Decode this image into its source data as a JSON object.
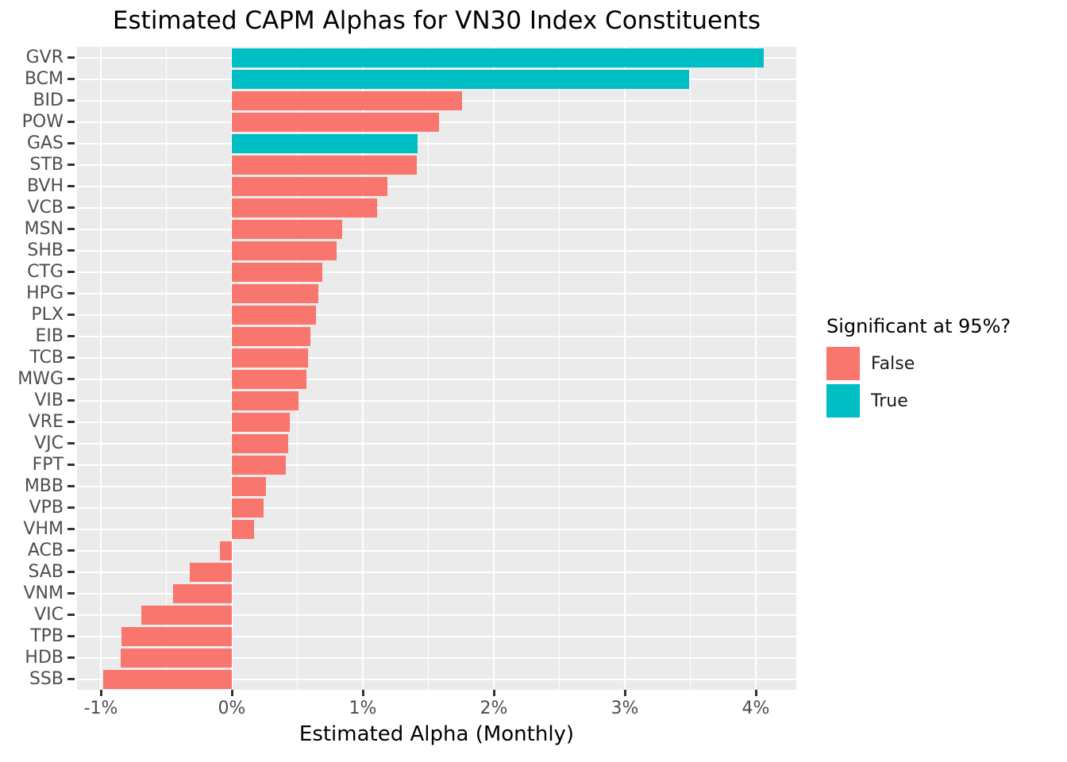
{
  "chart": {
    "title": "Estimated CAPM Alphas for VN30 Index Constituents",
    "xlabel": "Estimated Alpha (Monthly)",
    "legend": {
      "title": "Significant at 95%?",
      "items": [
        {
          "label": "False",
          "key": "false",
          "color": "#F8766D"
        },
        {
          "label": "True",
          "key": "true",
          "color": "#00BFC4"
        }
      ]
    }
  },
  "colors": {
    "significant_false": "#F8766D",
    "significant_true": "#00BFC4",
    "panel_background": "#EBEBEB",
    "gridline": "#FFFFFF",
    "axis_text": "#4D4D4D",
    "tick_mark": "#333333",
    "title_text": "#000000"
  },
  "chart_data": {
    "type": "bar",
    "orientation": "horizontal",
    "title": "Estimated CAPM Alphas for VN30 Index Constituents",
    "xlabel": "Estimated Alpha (Monthly)",
    "ylabel": "",
    "series_key": "Significant at 95%?",
    "legend_position": "right",
    "grid": true,
    "xlim": [
      -1.2,
      4.3
    ],
    "x_ticks": [
      {
        "label": "-1%",
        "value": -1
      },
      {
        "label": "0%",
        "value": 0
      },
      {
        "label": "1%",
        "value": 1
      },
      {
        "label": "2%",
        "value": 2
      },
      {
        "label": "3%",
        "value": 3
      },
      {
        "label": "4%",
        "value": 4
      }
    ],
    "bars": [
      {
        "ticker": "GVR",
        "alpha_pct": 4.06,
        "significant": true
      },
      {
        "ticker": "BCM",
        "alpha_pct": 3.49,
        "significant": true
      },
      {
        "ticker": "BID",
        "alpha_pct": 1.76,
        "significant": false
      },
      {
        "ticker": "POW",
        "alpha_pct": 1.58,
        "significant": false
      },
      {
        "ticker": "GAS",
        "alpha_pct": 1.42,
        "significant": true
      },
      {
        "ticker": "STB",
        "alpha_pct": 1.41,
        "significant": false
      },
      {
        "ticker": "BVH",
        "alpha_pct": 1.19,
        "significant": false
      },
      {
        "ticker": "VCB",
        "alpha_pct": 1.11,
        "significant": false
      },
      {
        "ticker": "MSN",
        "alpha_pct": 0.84,
        "significant": false
      },
      {
        "ticker": "SHB",
        "alpha_pct": 0.8,
        "significant": false
      },
      {
        "ticker": "CTG",
        "alpha_pct": 0.69,
        "significant": false
      },
      {
        "ticker": "HPG",
        "alpha_pct": 0.66,
        "significant": false
      },
      {
        "ticker": "PLX",
        "alpha_pct": 0.64,
        "significant": false
      },
      {
        "ticker": "EIB",
        "alpha_pct": 0.6,
        "significant": false
      },
      {
        "ticker": "TCB",
        "alpha_pct": 0.58,
        "significant": false
      },
      {
        "ticker": "MWG",
        "alpha_pct": 0.57,
        "significant": false
      },
      {
        "ticker": "VIB",
        "alpha_pct": 0.51,
        "significant": false
      },
      {
        "ticker": "VRE",
        "alpha_pct": 0.44,
        "significant": false
      },
      {
        "ticker": "VJC",
        "alpha_pct": 0.43,
        "significant": false
      },
      {
        "ticker": "FPT",
        "alpha_pct": 0.41,
        "significant": false
      },
      {
        "ticker": "MBB",
        "alpha_pct": 0.26,
        "significant": false
      },
      {
        "ticker": "VPB",
        "alpha_pct": 0.24,
        "significant": false
      },
      {
        "ticker": "VHM",
        "alpha_pct": 0.17,
        "significant": false
      },
      {
        "ticker": "ACB",
        "alpha_pct": -0.09,
        "significant": false
      },
      {
        "ticker": "SAB",
        "alpha_pct": -0.32,
        "significant": false
      },
      {
        "ticker": "VNM",
        "alpha_pct": -0.45,
        "significant": false
      },
      {
        "ticker": "VIC",
        "alpha_pct": -0.69,
        "significant": false
      },
      {
        "ticker": "TPB",
        "alpha_pct": -0.84,
        "significant": false
      },
      {
        "ticker": "HDB",
        "alpha_pct": -0.85,
        "significant": false
      },
      {
        "ticker": "SSB",
        "alpha_pct": -0.98,
        "significant": false
      }
    ]
  }
}
